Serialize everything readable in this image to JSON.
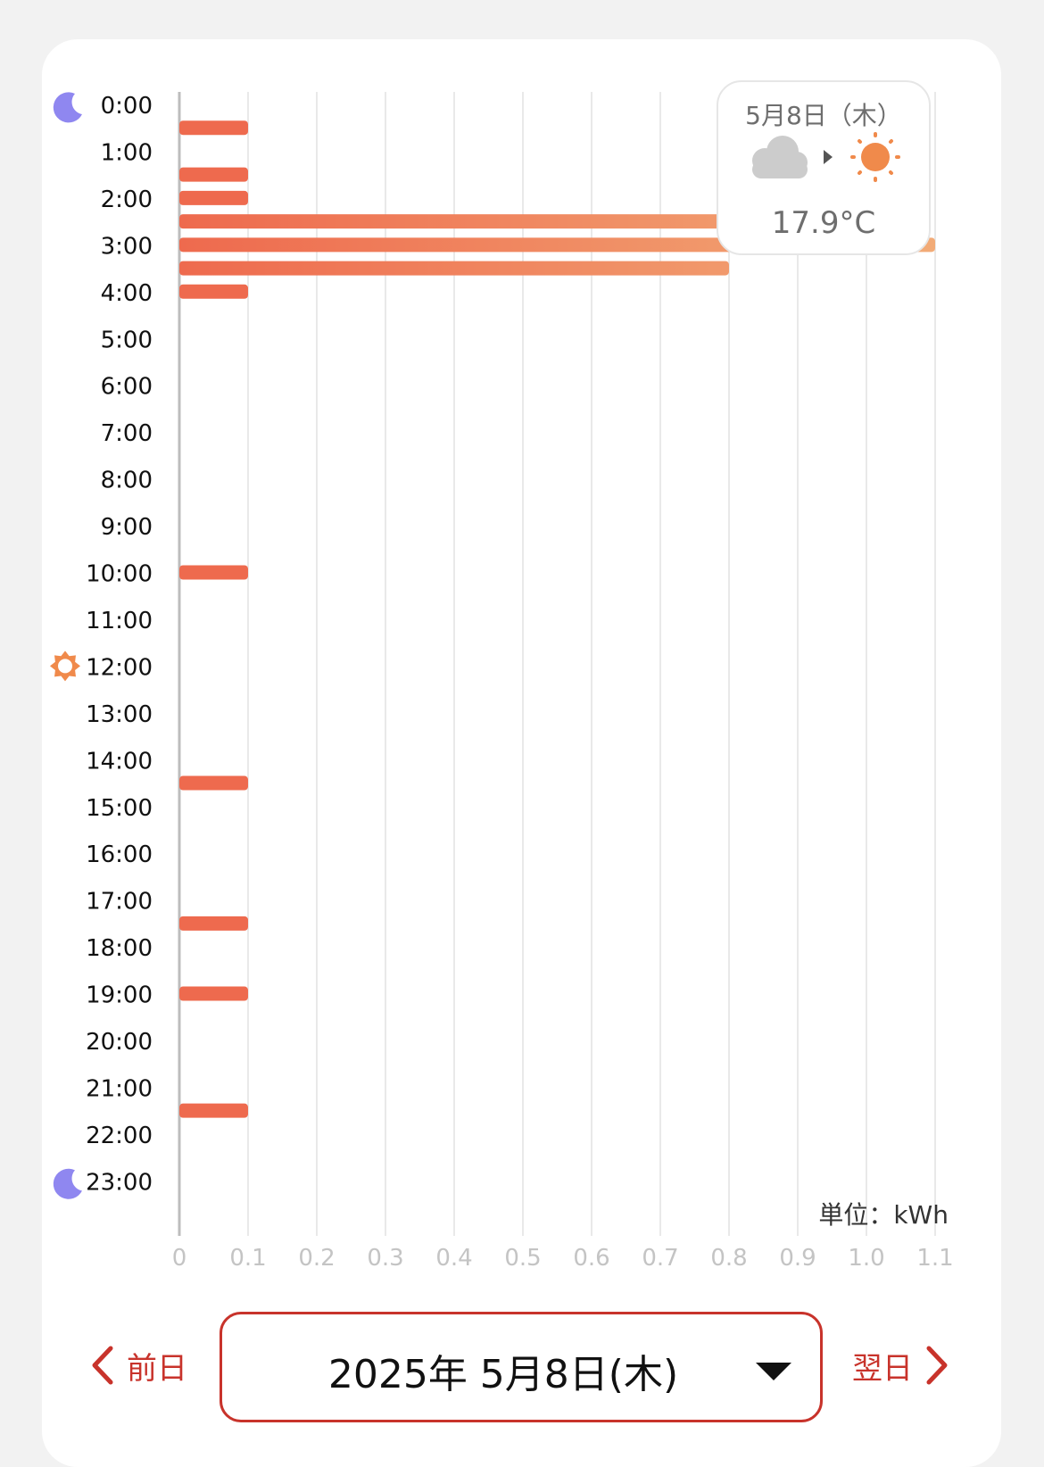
{
  "chart_data": {
    "type": "bar",
    "orientation": "horizontal",
    "categories": [
      "0:00",
      "1:00",
      "2:00",
      "3:00",
      "4:00",
      "5:00",
      "6:00",
      "7:00",
      "8:00",
      "9:00",
      "10:00",
      "11:00",
      "12:00",
      "13:00",
      "14:00",
      "15:00",
      "16:00",
      "17:00",
      "18:00",
      "19:00",
      "20:00",
      "21:00",
      "22:00",
      "23:00"
    ],
    "half_hour_values": [
      0.1,
      0,
      0.1,
      0.1,
      1.0,
      1.1,
      0.8,
      0.1,
      0,
      0,
      0,
      0,
      0,
      0,
      0,
      0,
      0,
      0,
      0,
      0.1,
      0,
      0,
      0,
      0,
      0,
      0,
      0,
      0,
      0.1,
      0,
      0,
      0,
      0,
      0,
      0.1,
      0,
      0,
      0.1,
      0,
      0,
      0,
      0,
      0.1,
      0,
      0,
      0,
      0,
      0
    ],
    "x_ticks": [
      "0",
      "0.1",
      "0.2",
      "0.3",
      "0.4",
      "0.5",
      "0.6",
      "0.7",
      "0.8",
      "0.9",
      "1.0",
      "1.1"
    ],
    "xlim": [
      0,
      1.1
    ],
    "unit_label": "単位：kWh",
    "grid": true,
    "bar_color_low": "#ee6a4e",
    "bar_color_high": "#f2ab77",
    "row_icons": {
      "0:00": "moon-icon",
      "12:00": "sun-icon",
      "23:00": "moon-icon"
    }
  },
  "weather": {
    "date": "5月8日（木）",
    "from_icon": "cloud-icon",
    "to_icon": "sun-icon",
    "temperature": "17.9°C"
  },
  "nav": {
    "prev_label": "前日",
    "next_label": "翌日",
    "selected_date": "2025年 5月8日(木)"
  },
  "colors": {
    "accent": "#c8332b",
    "moon": "#8f87f0",
    "sun": "#f08a4b",
    "cloud": "#cccccc"
  }
}
